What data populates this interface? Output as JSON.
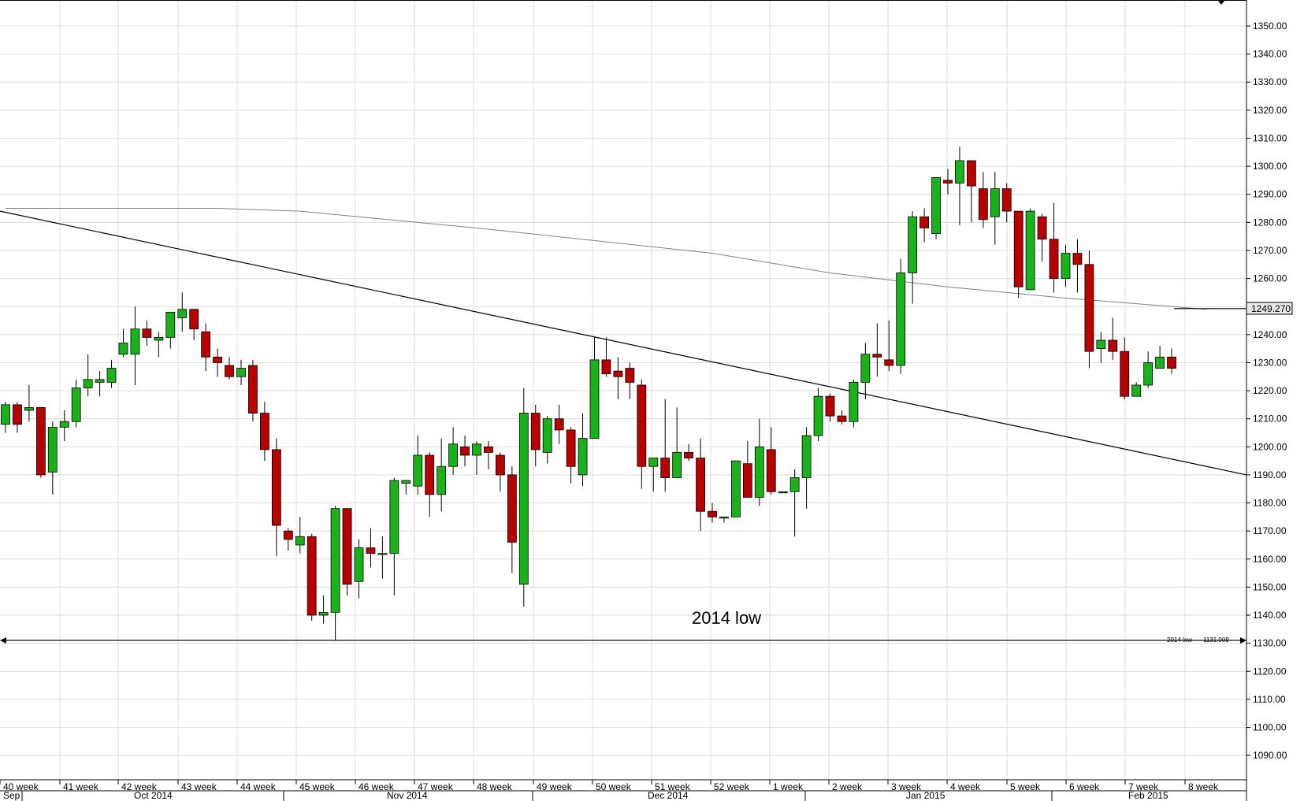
{
  "chart_data": {
    "type": "candlestick",
    "y_ticks": [
      "1350.00",
      "1340.00",
      "1330.00",
      "1320.00",
      "1310.00",
      "1300.00",
      "1290.00",
      "1280.00",
      "1270.00",
      "1260.00",
      "1250.00",
      "1240.00",
      "1230.00",
      "1220.00",
      "1210.00",
      "1200.00",
      "1190.00",
      "1180.00",
      "1170.00",
      "1160.00",
      "1150.00",
      "1140.00",
      "1130.00",
      "1120.00",
      "1110.00",
      "1100.00",
      "1090.00"
    ],
    "ylim": [
      1080,
      1355
    ],
    "week_labels": [
      "40 week",
      "41 week",
      "42 week",
      "43 week",
      "44 week",
      "45 week",
      "46 week",
      "47 week",
      "48 week",
      "49 week",
      "50 week",
      "51 week",
      "52 week",
      "1 week",
      "2 week",
      "3 week",
      "4 week",
      "5 week",
      "6 week",
      "7 week",
      "8 week"
    ],
    "month_labels": [
      "Sep",
      "Oct 2014",
      "Nov 2014",
      "Dec 2014",
      "Jan 2015",
      "Feb 2015"
    ],
    "annotation_text": "2014 low",
    "support_line_label": "2014 low",
    "support_line_value": "1131.009",
    "support_level": 1131,
    "current_price_label": "1249.270",
    "moving_average": [
      [
        0,
        1285
      ],
      [
        18,
        1285
      ],
      [
        25,
        1284
      ],
      [
        40,
        1278
      ],
      [
        60,
        1269
      ],
      [
        70,
        1262
      ],
      [
        80,
        1257
      ],
      [
        90,
        1253
      ],
      [
        102,
        1249
      ]
    ],
    "trendline": [
      [
        0,
        1284
      ],
      [
        102,
        1190
      ]
    ],
    "colors": {
      "up": "#1ab21a",
      "down": "#b80000",
      "grid": "#dcdcdc",
      "line": "#000000",
      "ma": "#808080"
    },
    "candles": [
      [
        1208,
        1216,
        1205,
        1215
      ],
      [
        1215,
        1216,
        1205,
        1208
      ],
      [
        1213,
        1222,
        1209,
        1214
      ],
      [
        1214,
        1214,
        1189,
        1190
      ],
      [
        1191,
        1209,
        1183,
        1207
      ],
      [
        1207,
        1213,
        1202,
        1209
      ],
      [
        1209,
        1224,
        1207,
        1221
      ],
      [
        1221,
        1233,
        1218,
        1224
      ],
      [
        1223,
        1227,
        1218,
        1224
      ],
      [
        1223,
        1231,
        1221,
        1228
      ],
      [
        1233,
        1242,
        1232,
        1237
      ],
      [
        1233,
        1250,
        1222,
        1242
      ],
      [
        1242,
        1245,
        1236,
        1239
      ],
      [
        1238,
        1241,
        1232,
        1239
      ],
      [
        1239,
        1247,
        1235,
        1248
      ],
      [
        1246,
        1255,
        1241,
        1249
      ],
      [
        1249,
        1249,
        1238,
        1242
      ],
      [
        1241,
        1244,
        1227,
        1232
      ],
      [
        1232,
        1235,
        1225,
        1230
      ],
      [
        1229,
        1232,
        1224,
        1225
      ],
      [
        1225,
        1231,
        1222,
        1228
      ],
      [
        1229,
        1231,
        1209,
        1212
      ],
      [
        1212,
        1216,
        1195,
        1199
      ],
      [
        1199,
        1203,
        1161,
        1172
      ],
      [
        1170,
        1171,
        1163,
        1167
      ],
      [
        1165,
        1175,
        1162,
        1168
      ],
      [
        1168,
        1169,
        1138,
        1140
      ],
      [
        1140,
        1147,
        1137,
        1141
      ],
      [
        1141,
        1179,
        1131,
        1178
      ],
      [
        1178,
        1178,
        1147,
        1151
      ],
      [
        1152,
        1167,
        1146,
        1164
      ],
      [
        1164,
        1171,
        1157,
        1162
      ],
      [
        1162,
        1168,
        1153,
        1162
      ],
      [
        1162,
        1189,
        1147,
        1188
      ],
      [
        1187,
        1187,
        1183,
        1188
      ],
      [
        1186,
        1204,
        1183,
        1197
      ],
      [
        1197,
        1198,
        1175,
        1183
      ],
      [
        1183,
        1203,
        1177,
        1193
      ],
      [
        1193,
        1207,
        1190,
        1201
      ],
      [
        1200,
        1204,
        1193,
        1197
      ],
      [
        1197,
        1202,
        1190,
        1201
      ],
      [
        1200,
        1202,
        1192,
        1198
      ],
      [
        1197,
        1198,
        1184,
        1190
      ],
      [
        1190,
        1193,
        1155,
        1166
      ],
      [
        1151,
        1221,
        1143,
        1212
      ],
      [
        1212,
        1215,
        1193,
        1199
      ],
      [
        1198,
        1211,
        1194,
        1210
      ],
      [
        1210,
        1215,
        1201,
        1206
      ],
      [
        1206,
        1207,
        1187,
        1193
      ],
      [
        1190,
        1212,
        1186,
        1203
      ],
      [
        1203,
        1239,
        1203,
        1231
      ],
      [
        1231,
        1239,
        1225,
        1226
      ],
      [
        1227,
        1232,
        1217,
        1225
      ],
      [
        1228,
        1230,
        1217,
        1223
      ],
      [
        1222,
        1224,
        1185,
        1193
      ],
      [
        1193,
        1196,
        1184,
        1196
      ],
      [
        1196,
        1217,
        1184,
        1189
      ],
      [
        1189,
        1214,
        1189,
        1198
      ],
      [
        1198,
        1201,
        1195,
        1196
      ],
      [
        1196,
        1203,
        1170,
        1177
      ],
      [
        1177,
        1180,
        1173,
        1175
      ],
      [
        1175,
        1175,
        1173,
        1175
      ],
      [
        1175,
        1195,
        1175,
        1195
      ],
      [
        1194,
        1202,
        1182,
        1182
      ],
      [
        1182,
        1210,
        1179,
        1200
      ],
      [
        1199,
        1207,
        1183,
        1184
      ],
      [
        1184,
        1184,
        1184,
        1184
      ],
      [
        1184,
        1192,
        1168,
        1189
      ],
      [
        1189,
        1207,
        1178,
        1204
      ],
      [
        1204,
        1221,
        1202,
        1218
      ],
      [
        1218,
        1219,
        1209,
        1211
      ],
      [
        1211,
        1213,
        1208,
        1209
      ],
      [
        1209,
        1224,
        1207,
        1223
      ],
      [
        1223,
        1237,
        1217,
        1233
      ],
      [
        1233,
        1244,
        1225,
        1232
      ],
      [
        1231,
        1245,
        1227,
        1229
      ],
      [
        1229,
        1267,
        1226,
        1262
      ],
      [
        1262,
        1284,
        1251,
        1282
      ],
      [
        1282,
        1285,
        1273,
        1278
      ],
      [
        1276,
        1296,
        1274,
        1296
      ],
      [
        1295,
        1299,
        1290,
        1294
      ],
      [
        1294,
        1307,
        1279,
        1302
      ],
      [
        1302,
        1302,
        1280,
        1293
      ],
      [
        1292,
        1298,
        1278,
        1281
      ],
      [
        1282,
        1298,
        1272,
        1292
      ],
      [
        1292,
        1294,
        1280,
        1284
      ],
      [
        1284,
        1284,
        1253,
        1257
      ],
      [
        1256,
        1285,
        1256,
        1284
      ],
      [
        1282,
        1283,
        1266,
        1274
      ],
      [
        1274,
        1287,
        1255,
        1260
      ],
      [
        1260,
        1272,
        1257,
        1269
      ],
      [
        1269,
        1274,
        1255,
        1265
      ],
      [
        1265,
        1270,
        1228,
        1234
      ],
      [
        1235,
        1241,
        1230,
        1238
      ],
      [
        1238,
        1246,
        1231,
        1234
      ],
      [
        1234,
        1239,
        1217,
        1218
      ],
      [
        1218,
        1223,
        1218,
        1222
      ],
      [
        1222,
        1234,
        1221,
        1230
      ],
      [
        1228,
        1236,
        1228,
        1232
      ],
      [
        1232,
        1235,
        1226,
        1228
      ]
    ]
  }
}
